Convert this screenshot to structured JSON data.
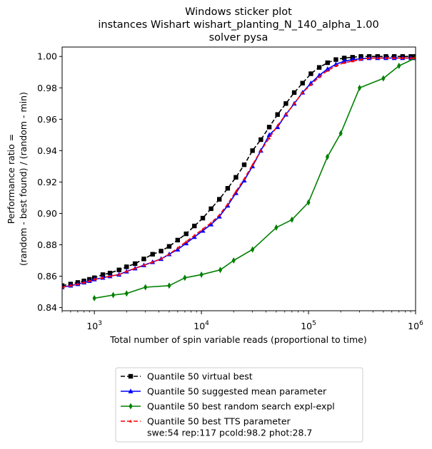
{
  "chart_data": {
    "type": "line",
    "title": [
      "Windows sticker plot",
      "instances Wishart wishart_planting_N_140_alpha_1.00",
      "solver pysa"
    ],
    "xlabel": "Total number of spin variable reads (proportional to time)",
    "ylabel": [
      "Performance ratio =",
      "(random - best found) / (random - min)"
    ],
    "xscale": "log",
    "xlim": [
      500,
      1000000
    ],
    "ylim": [
      0.838,
      1.006
    ],
    "x_ticks": [
      {
        "value": 1000,
        "base": "10",
        "exp": "3"
      },
      {
        "value": 10000,
        "base": "10",
        "exp": "4"
      },
      {
        "value": 100000,
        "base": "10",
        "exp": "5"
      },
      {
        "value": 1000000,
        "base": "10",
        "exp": "6"
      }
    ],
    "y_ticks": [
      {
        "value": 0.84,
        "label": "0.84"
      },
      {
        "value": 0.86,
        "label": "0.86"
      },
      {
        "value": 0.88,
        "label": "0.88"
      },
      {
        "value": 0.9,
        "label": "0.90"
      },
      {
        "value": 0.92,
        "label": "0.92"
      },
      {
        "value": 0.94,
        "label": "0.94"
      },
      {
        "value": 0.96,
        "label": "0.96"
      },
      {
        "value": 0.98,
        "label": "0.98"
      },
      {
        "value": 1.0,
        "label": "1.00"
      }
    ],
    "grid": false,
    "legend_position": "below",
    "series": [
      {
        "name": "Quantile 50 virtual best",
        "color": "#000000",
        "marker": "square",
        "dash": "6,3",
        "x": [
          500,
          600,
          700,
          800,
          900,
          1000,
          1200,
          1400,
          1700,
          2000,
          2400,
          2900,
          3500,
          4200,
          5000,
          6000,
          7200,
          8600,
          10300,
          12300,
          14700,
          17600,
          21000,
          25100,
          30000,
          35900,
          43000,
          51400,
          61500,
          73600,
          88000,
          105300,
          126000,
          150700,
          180300,
          215700,
          258000,
          308700,
          369300,
          441800,
          528500,
          632300,
          756500,
          905000,
          1000000
        ],
        "y": [
          0.854,
          0.855,
          0.856,
          0.857,
          0.858,
          0.859,
          0.861,
          0.862,
          0.864,
          0.866,
          0.868,
          0.871,
          0.874,
          0.876,
          0.879,
          0.883,
          0.887,
          0.892,
          0.897,
          0.903,
          0.909,
          0.916,
          0.923,
          0.931,
          0.94,
          0.947,
          0.955,
          0.963,
          0.97,
          0.977,
          0.983,
          0.989,
          0.993,
          0.996,
          0.998,
          0.999,
          0.9995,
          1.0,
          1.0,
          1.0,
          1.0,
          1.0,
          1.0,
          1.0,
          1.0
        ]
      },
      {
        "name": "Quantile 50 suggested mean parameter",
        "color": "#0000ff",
        "marker": "triangle",
        "dash": "",
        "x": [
          500,
          600,
          700,
          800,
          900,
          1000,
          1200,
          1400,
          1700,
          2000,
          2400,
          2900,
          3500,
          4200,
          5000,
          6000,
          7200,
          8600,
          10300,
          12300,
          14700,
          17600,
          21000,
          25100,
          30000,
          35900,
          43000,
          51400,
          61500,
          73600,
          88000,
          105300,
          126000,
          150700,
          180300,
          215700,
          258000,
          308700,
          369300,
          441800,
          528500,
          632300,
          756500,
          905000,
          1000000
        ],
        "y": [
          0.853,
          0.854,
          0.855,
          0.856,
          0.857,
          0.858,
          0.859,
          0.86,
          0.861,
          0.863,
          0.865,
          0.867,
          0.869,
          0.871,
          0.874,
          0.877,
          0.881,
          0.885,
          0.889,
          0.893,
          0.898,
          0.905,
          0.913,
          0.921,
          0.93,
          0.94,
          0.95,
          0.955,
          0.963,
          0.97,
          0.977,
          0.983,
          0.988,
          0.992,
          0.995,
          0.997,
          0.998,
          0.9985,
          0.999,
          0.999,
          0.999,
          0.999,
          0.999,
          0.999,
          0.999
        ]
      },
      {
        "name": "Quantile 50  best random search expl-expl",
        "color": "#008000",
        "marker": "diamond",
        "dash": "",
        "x": [
          1000,
          1500,
          2000,
          3000,
          5000,
          7000,
          10000,
          15000,
          20000,
          30000,
          50000,
          70000,
          100000,
          150000,
          200000,
          300000,
          500000,
          700000,
          1000000
        ],
        "y": [
          0.846,
          0.848,
          0.849,
          0.853,
          0.854,
          0.859,
          0.861,
          0.864,
          0.87,
          0.877,
          0.891,
          0.896,
          0.907,
          0.936,
          0.951,
          0.98,
          0.986,
          0.994,
          0.999
        ]
      },
      {
        "name": "Quantile 50 best TTS parameter",
        "name_line2": "swe:54 rep:117 pcold:98.2 phot:28.7",
        "color": "#ff0000",
        "marker": "smalltriangle",
        "dash": "6,3",
        "x": [
          500,
          600,
          700,
          800,
          900,
          1000,
          1200,
          1400,
          1700,
          2000,
          2400,
          2900,
          3500,
          4200,
          5000,
          6000,
          7200,
          8600,
          10300,
          12300,
          14700,
          17600,
          21000,
          25100,
          30000,
          35900,
          43000,
          51400,
          61500,
          73600,
          88000,
          105300,
          126000,
          150700,
          180300,
          215700,
          258000,
          308700,
          369300,
          441800,
          528500,
          632300,
          756500,
          905000,
          1000000
        ],
        "y": [
          0.853,
          0.854,
          0.855,
          0.856,
          0.857,
          0.858,
          0.859,
          0.86,
          0.861,
          0.863,
          0.865,
          0.867,
          0.869,
          0.871,
          0.874,
          0.878,
          0.882,
          0.886,
          0.89,
          0.894,
          0.899,
          0.906,
          0.914,
          0.922,
          0.931,
          0.94,
          0.948,
          0.956,
          0.963,
          0.97,
          0.977,
          0.982,
          0.987,
          0.991,
          0.994,
          0.996,
          0.997,
          0.998,
          0.999,
          0.999,
          0.999,
          0.999,
          0.999,
          0.999,
          0.999
        ]
      }
    ]
  }
}
